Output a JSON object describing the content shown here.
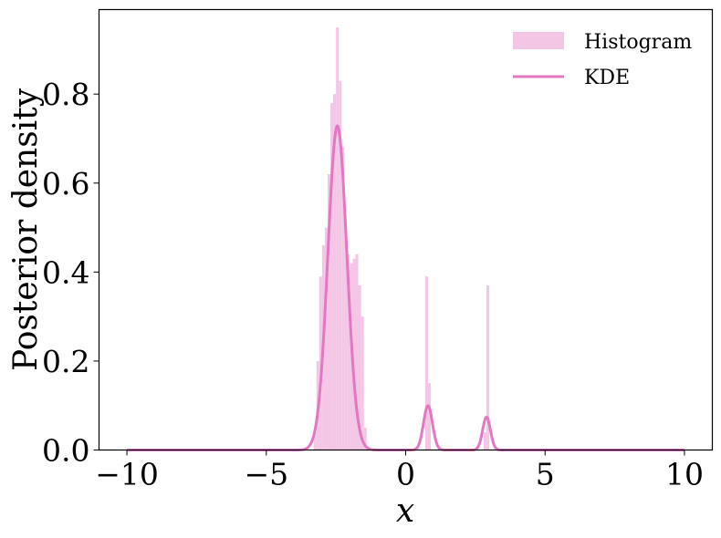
{
  "chart_data": {
    "type": "bar",
    "title": "",
    "xlabel": "x",
    "ylabel": "Posterior density",
    "xlim": [
      -11,
      11
    ],
    "ylim": [
      0,
      0.99
    ],
    "xticks": [
      -10,
      -5,
      0,
      5,
      10
    ],
    "xtick_labels": [
      "−10",
      "−5",
      "0",
      "5",
      "10"
    ],
    "yticks": [
      0.0,
      0.2,
      0.4,
      0.6,
      0.8
    ],
    "ytick_labels": [
      "0.0",
      "0.2",
      "0.4",
      "0.6",
      "0.8"
    ],
    "grid": false,
    "legend_position": "top-right",
    "colors": {
      "histogram": "#f4c6e6",
      "kde": "#e377c2"
    },
    "legend": [
      {
        "name": "Histogram",
        "kind": "patch"
      },
      {
        "name": "KDE",
        "kind": "line"
      }
    ],
    "series": [
      {
        "name": "Histogram",
        "type": "bar",
        "bin_width": 0.1,
        "bars": [
          {
            "x": -3.3,
            "y": 0.04
          },
          {
            "x": -3.2,
            "y": 0.2
          },
          {
            "x": -3.1,
            "y": 0.39
          },
          {
            "x": -3.0,
            "y": 0.46
          },
          {
            "x": -2.9,
            "y": 0.5
          },
          {
            "x": -2.8,
            "y": 0.62
          },
          {
            "x": -2.7,
            "y": 0.78
          },
          {
            "x": -2.6,
            "y": 0.8
          },
          {
            "x": -2.5,
            "y": 0.95
          },
          {
            "x": -2.4,
            "y": 0.83
          },
          {
            "x": -2.3,
            "y": 0.68
          },
          {
            "x": -2.2,
            "y": 0.5
          },
          {
            "x": -2.1,
            "y": 0.44
          },
          {
            "x": -2.0,
            "y": 0.42
          },
          {
            "x": -1.9,
            "y": 0.43
          },
          {
            "x": -1.8,
            "y": 0.44
          },
          {
            "x": -1.7,
            "y": 0.37
          },
          {
            "x": -1.6,
            "y": 0.3
          },
          {
            "x": -1.5,
            "y": 0.05
          },
          {
            "x": 0.7,
            "y": 0.39
          },
          {
            "x": 0.8,
            "y": 0.15
          },
          {
            "x": 2.8,
            "y": 0.04
          },
          {
            "x": 2.9,
            "y": 0.37
          }
        ]
      },
      {
        "name": "KDE",
        "type": "line",
        "components": [
          {
            "mean": -2.45,
            "sd": 0.34,
            "weight": 0.621
          },
          {
            "mean": 0.8,
            "sd": 0.16,
            "weight": 0.04
          },
          {
            "mean": 2.9,
            "sd": 0.14,
            "weight": 0.026
          }
        ],
        "domain": [
          -10,
          10
        ]
      }
    ]
  }
}
